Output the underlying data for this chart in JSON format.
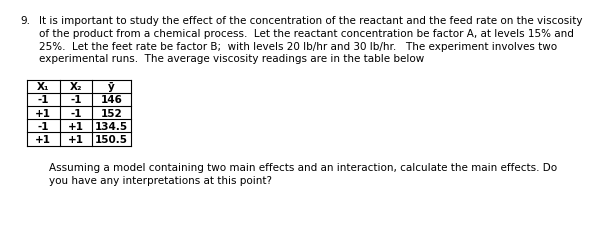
{
  "question_number": "9.",
  "para_lines": [
    "It is important to study the effect of the concentration of the reactant and the feed rate on the viscosity",
    "of the product from a chemical process.  Let the reactant concentration be factor A, at levels 15% and",
    "25%.  Let the feet rate be factor B;  with levels 20 lb/hr and 30 lb/hr.   The experiment involves two",
    "experimental runs.  The average viscosity readings are in the table below"
  ],
  "table_headers": [
    "X₁",
    "X₂",
    "ȳ"
  ],
  "table_rows": [
    [
      "-1",
      "-1",
      "146"
    ],
    [
      "+1",
      "-1",
      "152"
    ],
    [
      "-1",
      "+1",
      "134.5"
    ],
    [
      "+1",
      "+1",
      "150.5"
    ]
  ],
  "footer_lines": [
    "Assuming a model containing two main effects and an interaction, calculate the main effects. Do",
    "you have any interpretations at this point?"
  ],
  "bg_color": "#ffffff",
  "text_color": "#000000",
  "font_size": 7.5,
  "table_font_size": 7.5
}
